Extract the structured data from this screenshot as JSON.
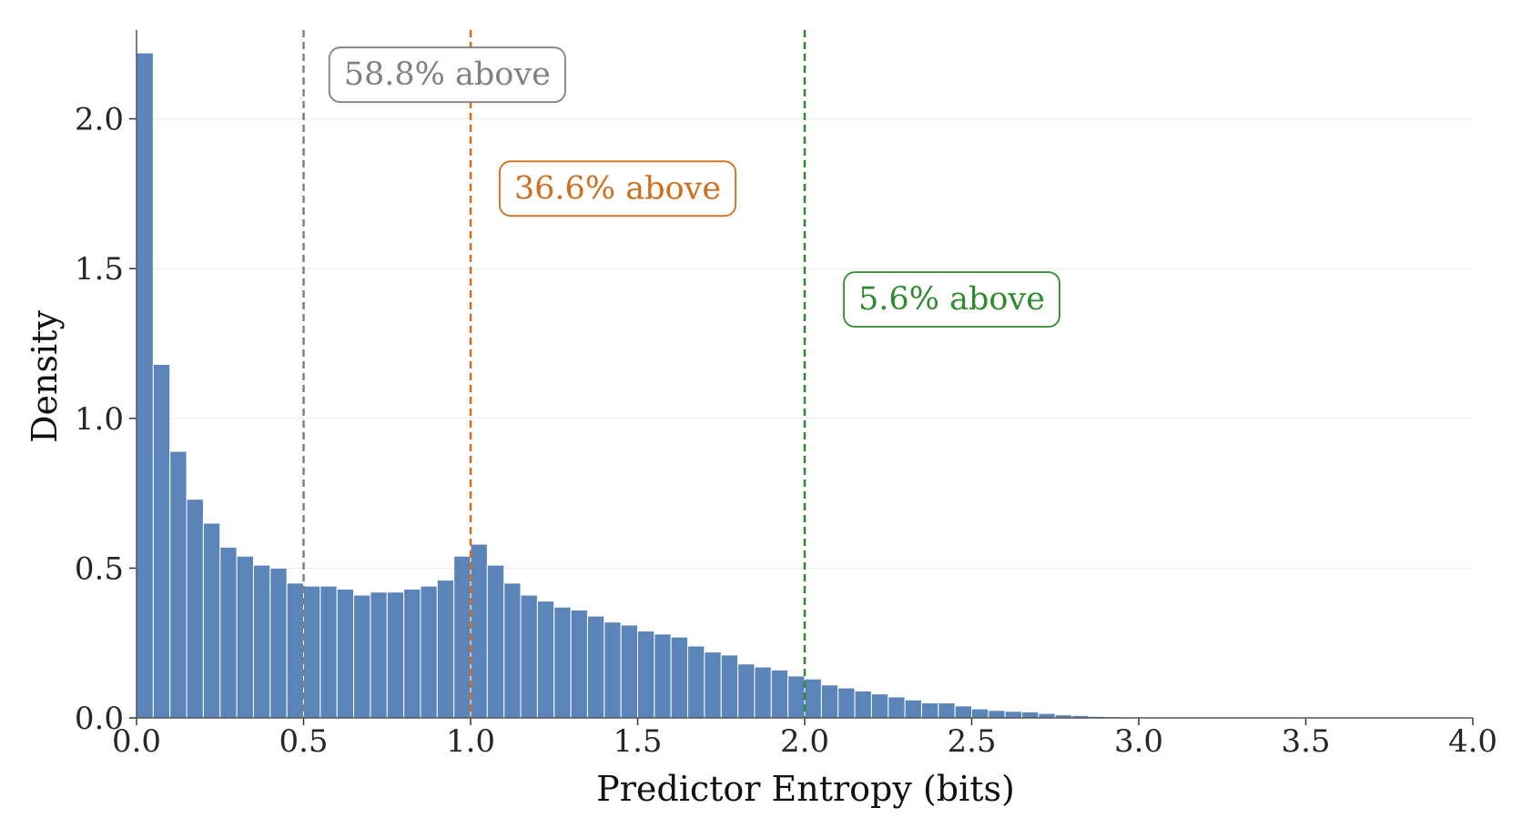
{
  "chart_data": {
    "type": "bar",
    "xlabel": "Predictor Entropy (bits)",
    "ylabel": "Density",
    "xlim": [
      0.0,
      4.0
    ],
    "ylim": [
      0.0,
      2.26
    ],
    "x_ticks": [
      "0.0",
      "0.5",
      "1.0",
      "1.5",
      "2.0",
      "2.5",
      "3.0",
      "3.5",
      "4.0"
    ],
    "y_ticks": [
      "0.0",
      "0.5",
      "1.0",
      "1.5",
      "2.0"
    ],
    "grid": "horizontal",
    "bin_width": 0.05,
    "bin_start": 0.0,
    "values": [
      2.22,
      1.18,
      0.89,
      0.73,
      0.65,
      0.57,
      0.54,
      0.51,
      0.5,
      0.45,
      0.44,
      0.44,
      0.43,
      0.41,
      0.42,
      0.42,
      0.43,
      0.44,
      0.46,
      0.54,
      0.58,
      0.51,
      0.45,
      0.41,
      0.39,
      0.37,
      0.36,
      0.34,
      0.32,
      0.31,
      0.29,
      0.28,
      0.27,
      0.24,
      0.22,
      0.21,
      0.18,
      0.17,
      0.16,
      0.14,
      0.13,
      0.11,
      0.1,
      0.09,
      0.08,
      0.07,
      0.06,
      0.05,
      0.05,
      0.04,
      0.03,
      0.025,
      0.022,
      0.02,
      0.015,
      0.01,
      0.008,
      0.005,
      0.004,
      0.003,
      0.002
    ],
    "bar_color": "#5b84b8",
    "thresholds": [
      {
        "x": 0.5,
        "color": "#808080",
        "label": "58.8% above",
        "label_x": 0.93,
        "label_y": 2.15
      },
      {
        "x": 1.0,
        "color": "#d06e1e",
        "label": "36.6% above",
        "label_x": 1.44,
        "label_y": 1.77
      },
      {
        "x": 2.0,
        "color": "#2e8b2e",
        "label": "5.6% above",
        "label_x": 2.44,
        "label_y": 1.4
      }
    ]
  }
}
